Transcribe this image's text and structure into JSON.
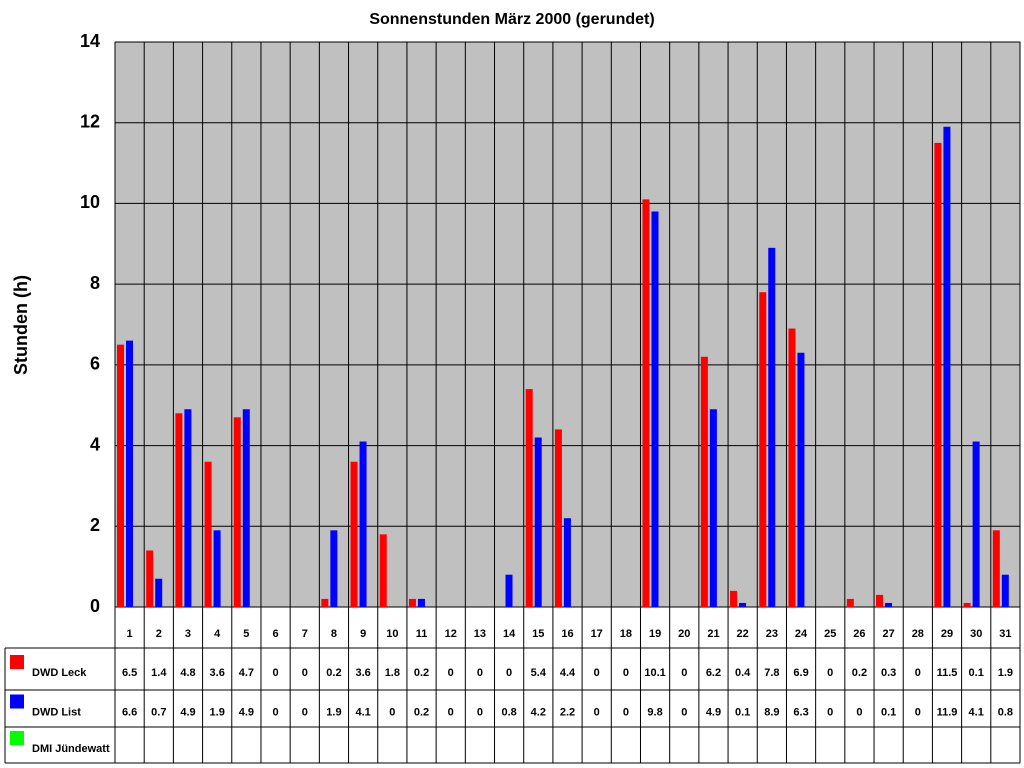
{
  "chart_data": {
    "type": "bar",
    "title": "Sonnenstunden März 2000 (gerundet)",
    "y_label": "Stunden (h)",
    "categories": [
      "1",
      "2",
      "3",
      "4",
      "5",
      "6",
      "7",
      "8",
      "9",
      "10",
      "11",
      "12",
      "13",
      "14",
      "15",
      "16",
      "17",
      "18",
      "19",
      "20",
      "21",
      "22",
      "23",
      "24",
      "25",
      "26",
      "27",
      "28",
      "29",
      "30",
      "31"
    ],
    "series": [
      {
        "name": "DWD Leck",
        "color": "#ff0000",
        "values": [
          6.5,
          1.4,
          4.8,
          3.6,
          4.7,
          0,
          0,
          0.2,
          3.6,
          1.8,
          0.2,
          0,
          0,
          0,
          5.4,
          4.4,
          0,
          0,
          10.1,
          0,
          6.2,
          0.4,
          7.8,
          6.9,
          0,
          0.2,
          0.3,
          0,
          11.5,
          0.1,
          1.9
        ]
      },
      {
        "name": "DWD List",
        "color": "#0000ff",
        "values": [
          6.6,
          0.7,
          4.9,
          1.9,
          4.9,
          0,
          0,
          1.9,
          4.1,
          0,
          0.2,
          0,
          0,
          0.8,
          4.2,
          2.2,
          0,
          0,
          9.8,
          0,
          4.9,
          0.1,
          8.9,
          6.3,
          0,
          0,
          0.1,
          0,
          11.9,
          4.1,
          0.8
        ]
      },
      {
        "name": "DMI Jündewatt",
        "color": "#00ff00",
        "values": [
          null,
          null,
          null,
          null,
          null,
          null,
          null,
          null,
          null,
          null,
          null,
          null,
          null,
          null,
          null,
          null,
          null,
          null,
          null,
          null,
          null,
          null,
          null,
          null,
          null,
          null,
          null,
          null,
          null,
          null,
          null
        ]
      }
    ],
    "ylim": [
      0,
      14
    ],
    "yticks": [
      0,
      2,
      4,
      6,
      8,
      10,
      12,
      14
    ],
    "grid": true,
    "plot_background": "#c0c0c0"
  }
}
